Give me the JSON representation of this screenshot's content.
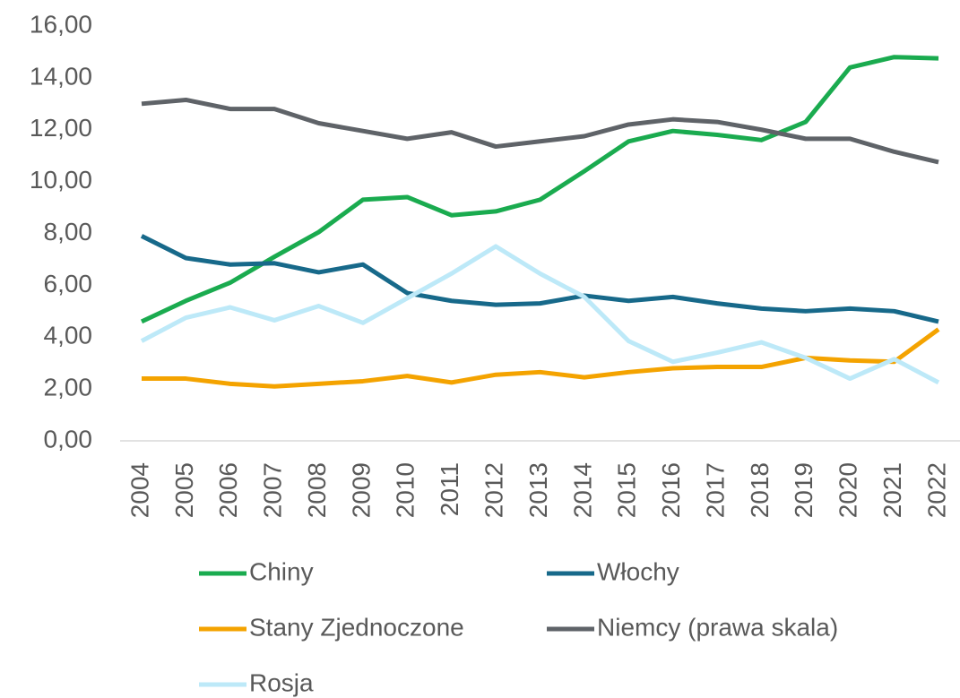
{
  "chart_data": {
    "type": "line",
    "categories": [
      "2004",
      "2005",
      "2006",
      "2007",
      "2008",
      "2009",
      "2010",
      "2011",
      "2012",
      "2013",
      "2014",
      "2015",
      "2016",
      "2017",
      "2018",
      "2019",
      "2020",
      "2021",
      "2022"
    ],
    "series": [
      {
        "name": "Chiny",
        "color": "#1aab4f",
        "values": [
          4.6,
          5.4,
          6.1,
          7.1,
          8.05,
          9.3,
          9.4,
          8.7,
          8.85,
          9.3,
          10.4,
          11.55,
          11.95,
          11.8,
          11.6,
          12.3,
          14.4,
          14.8,
          14.75
        ]
      },
      {
        "name": "Włochy",
        "color": "#17698a",
        "values": [
          7.9,
          7.05,
          6.8,
          6.85,
          6.5,
          6.8,
          5.7,
          5.4,
          5.25,
          5.3,
          5.6,
          5.4,
          5.55,
          5.3,
          5.1,
          5.0,
          5.1,
          5.0,
          4.6
        ]
      },
      {
        "name": "Stany Zjednoczone",
        "color": "#f4a300",
        "values": [
          2.4,
          2.4,
          2.2,
          2.1,
          2.2,
          2.3,
          2.5,
          2.25,
          2.55,
          2.65,
          2.45,
          2.65,
          2.8,
          2.85,
          2.85,
          3.2,
          3.1,
          3.05,
          4.3
        ]
      },
      {
        "name": "Niemcy (prawa skala)",
        "color": "#5f6368",
        "values": [
          13.0,
          13.15,
          12.8,
          12.8,
          12.25,
          11.95,
          11.65,
          11.9,
          11.35,
          11.55,
          11.75,
          12.2,
          12.4,
          12.3,
          12.0,
          11.65,
          11.65,
          11.15,
          10.75
        ]
      },
      {
        "name": "Rosja",
        "color": "#bde9f8",
        "values": [
          3.85,
          4.75,
          5.15,
          4.65,
          5.2,
          4.55,
          5.5,
          6.45,
          7.5,
          6.45,
          5.55,
          3.85,
          3.05,
          3.4,
          3.8,
          3.2,
          2.4,
          3.15,
          2.25
        ]
      }
    ],
    "ylim": [
      0,
      16
    ],
    "yticks": [
      {
        "value": 0,
        "label": "0,00"
      },
      {
        "value": 2,
        "label": "2,00"
      },
      {
        "value": 4,
        "label": "4,00"
      },
      {
        "value": 6,
        "label": "6,00"
      },
      {
        "value": 8,
        "label": "8,00"
      },
      {
        "value": 10,
        "label": "10,00"
      },
      {
        "value": 12,
        "label": "12,00"
      },
      {
        "value": 14,
        "label": "14,00"
      },
      {
        "value": 16,
        "label": "16,00"
      }
    ],
    "grid": false
  }
}
